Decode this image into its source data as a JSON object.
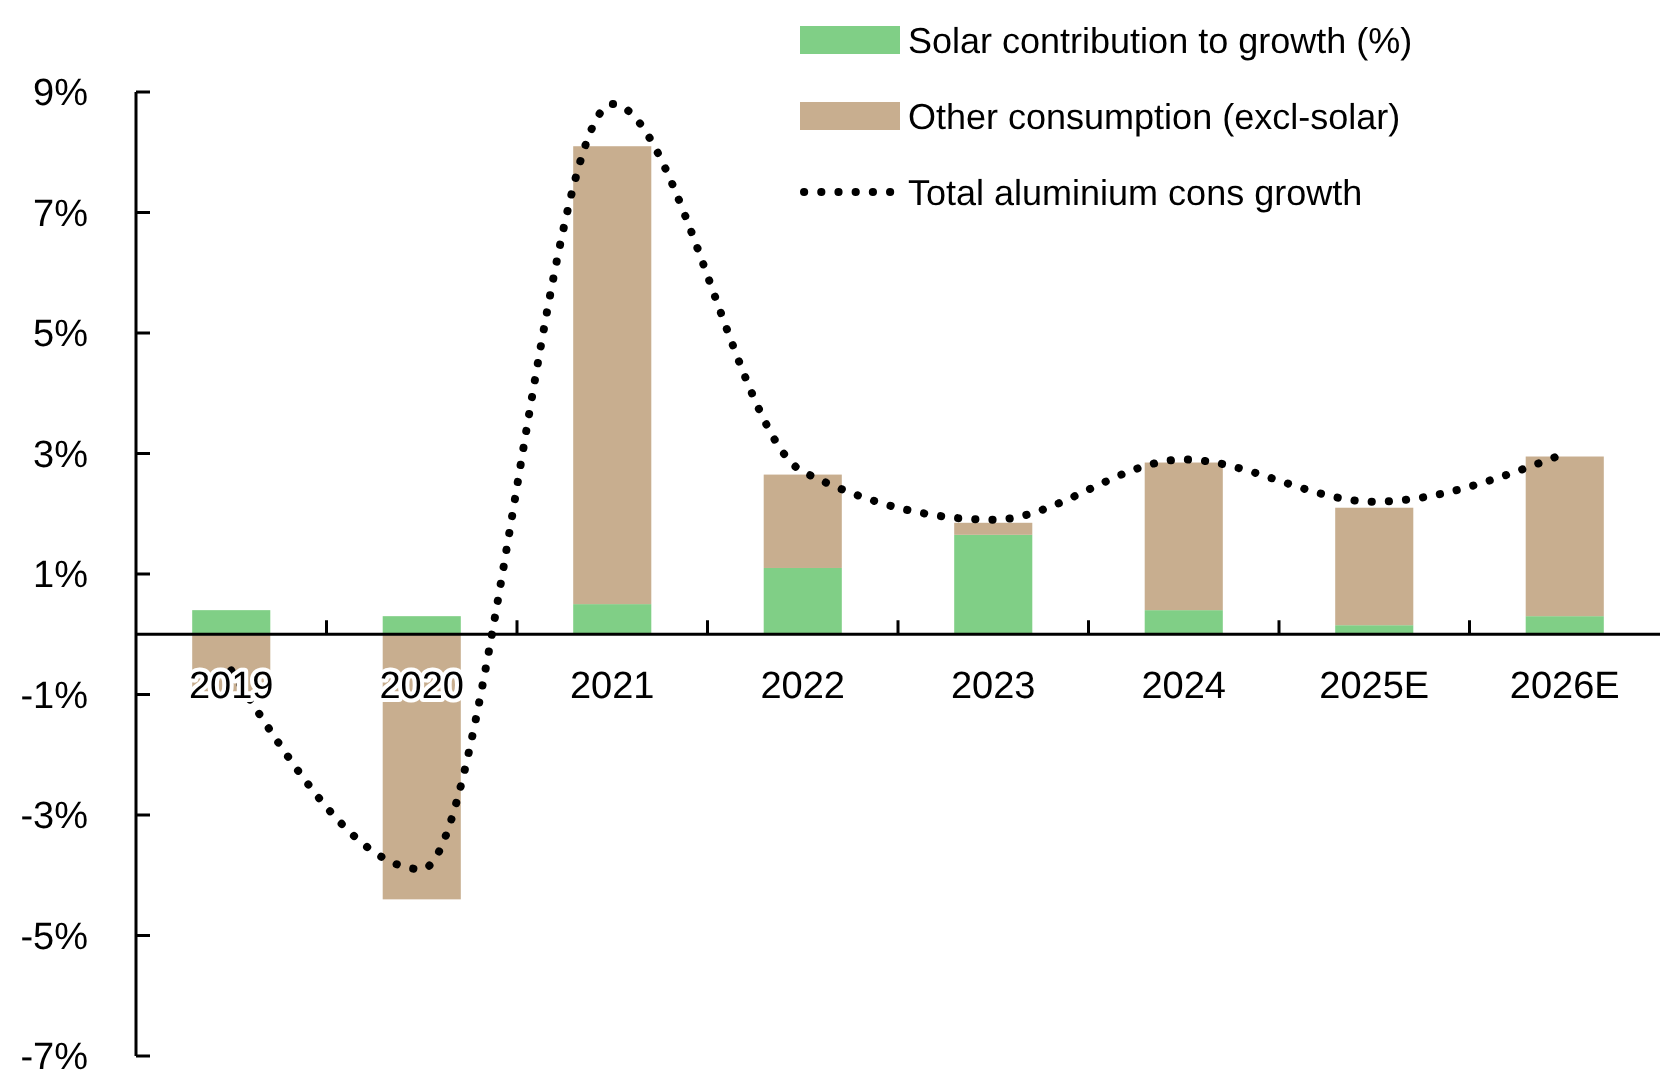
{
  "chart_data": {
    "type": "bar",
    "stacked": true,
    "categories": [
      "2019",
      "2020",
      "2021",
      "2022",
      "2023",
      "2024",
      "2025E",
      "2026E"
    ],
    "series": [
      {
        "name": "Solar contribution to growth (%)",
        "color": "#80cf86",
        "values": [
          0.4,
          0.3,
          0.5,
          1.1,
          1.65,
          0.4,
          0.15,
          0.3
        ]
      },
      {
        "name": "Other consumption  (excl-solar)",
        "color": "#c8ae8f",
        "values": [
          -1.0,
          -4.4,
          7.6,
          1.55,
          0.2,
          2.45,
          1.95,
          2.65
        ]
      },
      {
        "name": "Total aluminium cons growth",
        "type": "line",
        "color": "#000000",
        "line_style": "dotted",
        "marker": "none",
        "values": [
          -0.6,
          -3.9,
          8.8,
          2.7,
          1.9,
          2.9,
          2.2,
          3.0
        ]
      }
    ],
    "ylim": [
      -7,
      9
    ],
    "yticks": [
      {
        "value": -7,
        "label": "-7%"
      },
      {
        "value": -5,
        "label": "-5%"
      },
      {
        "value": -3,
        "label": "-3%"
      },
      {
        "value": -1,
        "label": "-1%"
      },
      {
        "value": 1,
        "label": "1%"
      },
      {
        "value": 3,
        "label": "3%"
      },
      {
        "value": 5,
        "label": "5%"
      },
      {
        "value": 7,
        "label": "7%"
      },
      {
        "value": 9,
        "label": "9%"
      }
    ],
    "grid": false,
    "legend": "top right"
  }
}
